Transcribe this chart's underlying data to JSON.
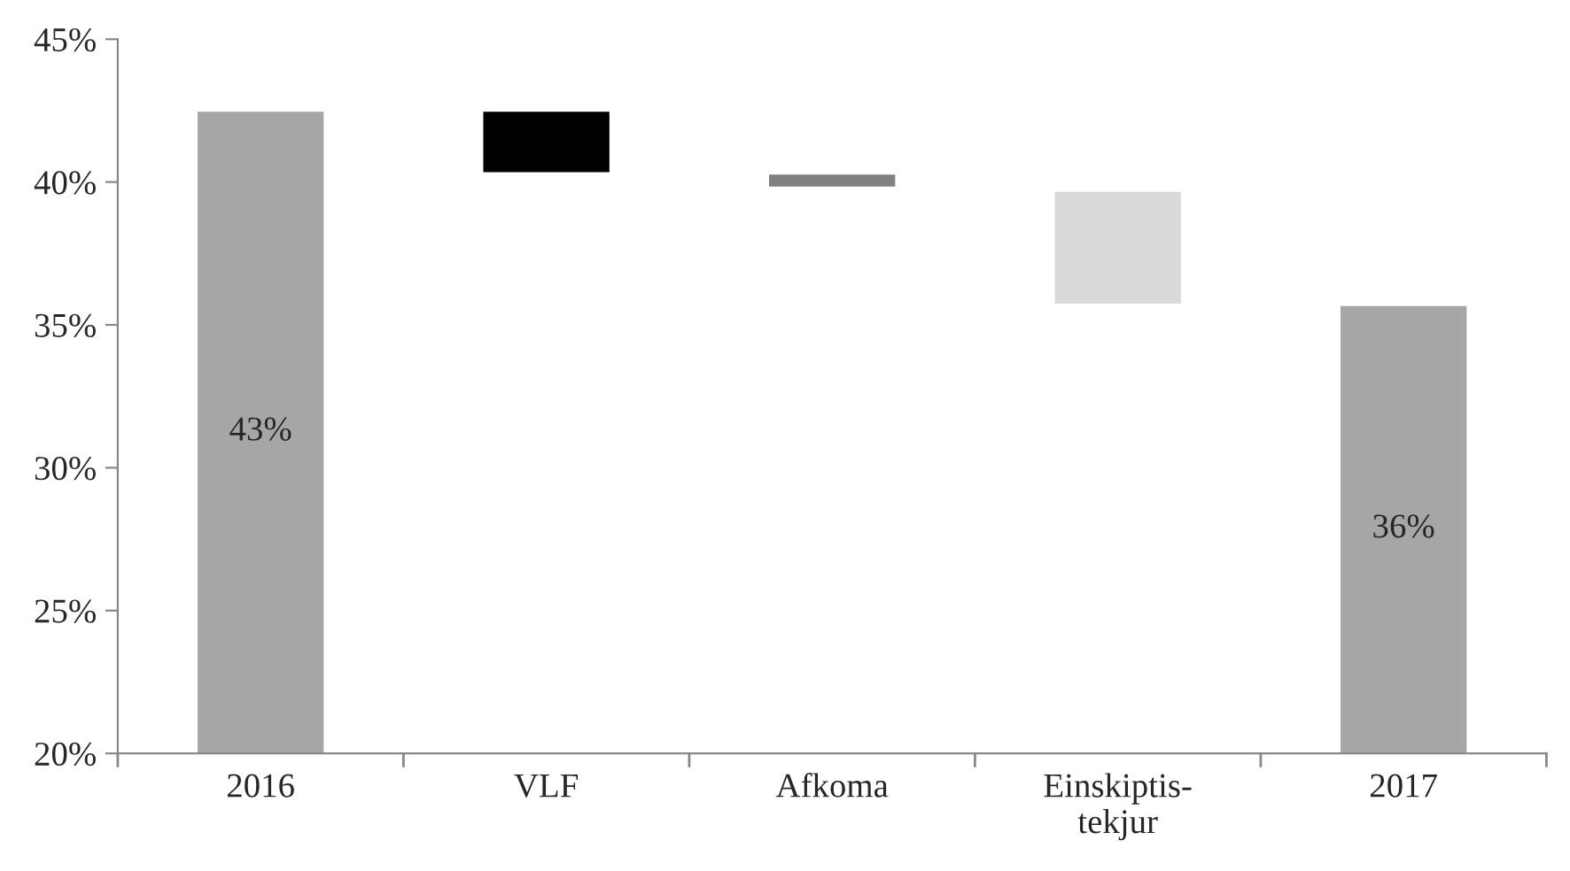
{
  "chart_data": {
    "type": "bar",
    "categories": [
      "2016",
      "VLF",
      "Afkoma",
      "Einskiptis-\ntekjur",
      "2017"
    ],
    "values": [
      42.5,
      2.2,
      0.5,
      4.0,
      35.7
    ],
    "base": [
      null,
      40.3,
      39.8,
      35.7,
      null
    ],
    "colors": [
      "#a6a6a6",
      "#000000",
      "#808080",
      "#d9d9d9",
      "#a6a6a6"
    ],
    "value_labels": [
      "43%",
      null,
      null,
      null,
      "36%"
    ],
    "ylim": [
      20,
      45
    ],
    "yticks": [
      {
        "value": 20,
        "label": "20%"
      },
      {
        "value": 25,
        "label": "25%"
      },
      {
        "value": 30,
        "label": "30%"
      },
      {
        "value": 35,
        "label": "35%"
      },
      {
        "value": 40,
        "label": "40%"
      },
      {
        "value": 45,
        "label": "45%"
      }
    ],
    "grid": false,
    "legend": false
  }
}
